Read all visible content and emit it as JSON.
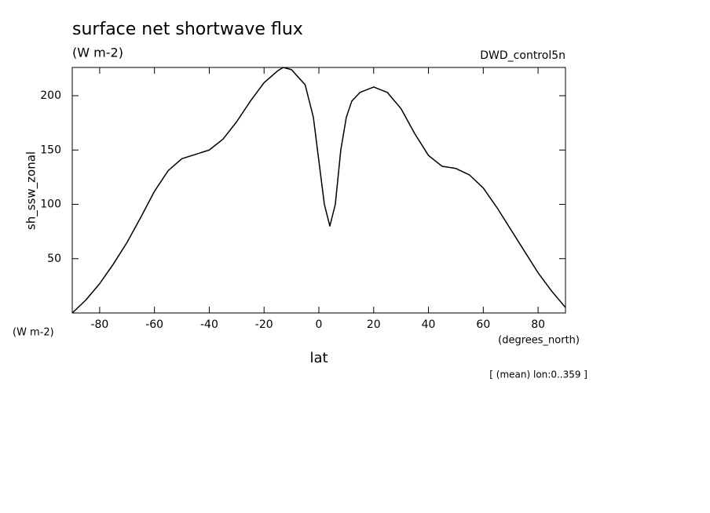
{
  "chart_data": {
    "type": "line",
    "title": "surface net shortwave flux",
    "subtitle": "(W m-2)",
    "annotation": "DWD_control5n",
    "y_label": "sh_ssw_zonal",
    "y_units": "(W m-2)",
    "x_label": "lat",
    "x_units": "(degrees_north)",
    "note": "[ (mean) lon:0..359 ]",
    "xlim": [
      -90,
      90
    ],
    "ylim": [
      0,
      226
    ],
    "xticks": [
      -80,
      -60,
      -40,
      -20,
      0,
      20,
      40,
      60,
      80
    ],
    "yticks": [
      50,
      100,
      150,
      200
    ],
    "color": "#000000",
    "x": [
      -90,
      -85,
      -80,
      -75,
      -70,
      -65,
      -60,
      -55,
      -50,
      -45,
      -40,
      -35,
      -30,
      -25,
      -20,
      -15,
      -13,
      -10,
      -5,
      -2,
      0,
      2,
      4,
      6,
      8,
      10,
      12,
      15,
      20,
      25,
      30,
      35,
      40,
      45,
      50,
      55,
      60,
      65,
      70,
      75,
      80,
      85,
      90
    ],
    "values": [
      0,
      12,
      27,
      45,
      65,
      88,
      112,
      131,
      142,
      146,
      150,
      160,
      176,
      195,
      212,
      223,
      226,
      224,
      210,
      180,
      140,
      100,
      80,
      100,
      150,
      180,
      195,
      203,
      208,
      203,
      188,
      165,
      145,
      135,
      133,
      127,
      115,
      97,
      77,
      57,
      37,
      20,
      5
    ]
  }
}
